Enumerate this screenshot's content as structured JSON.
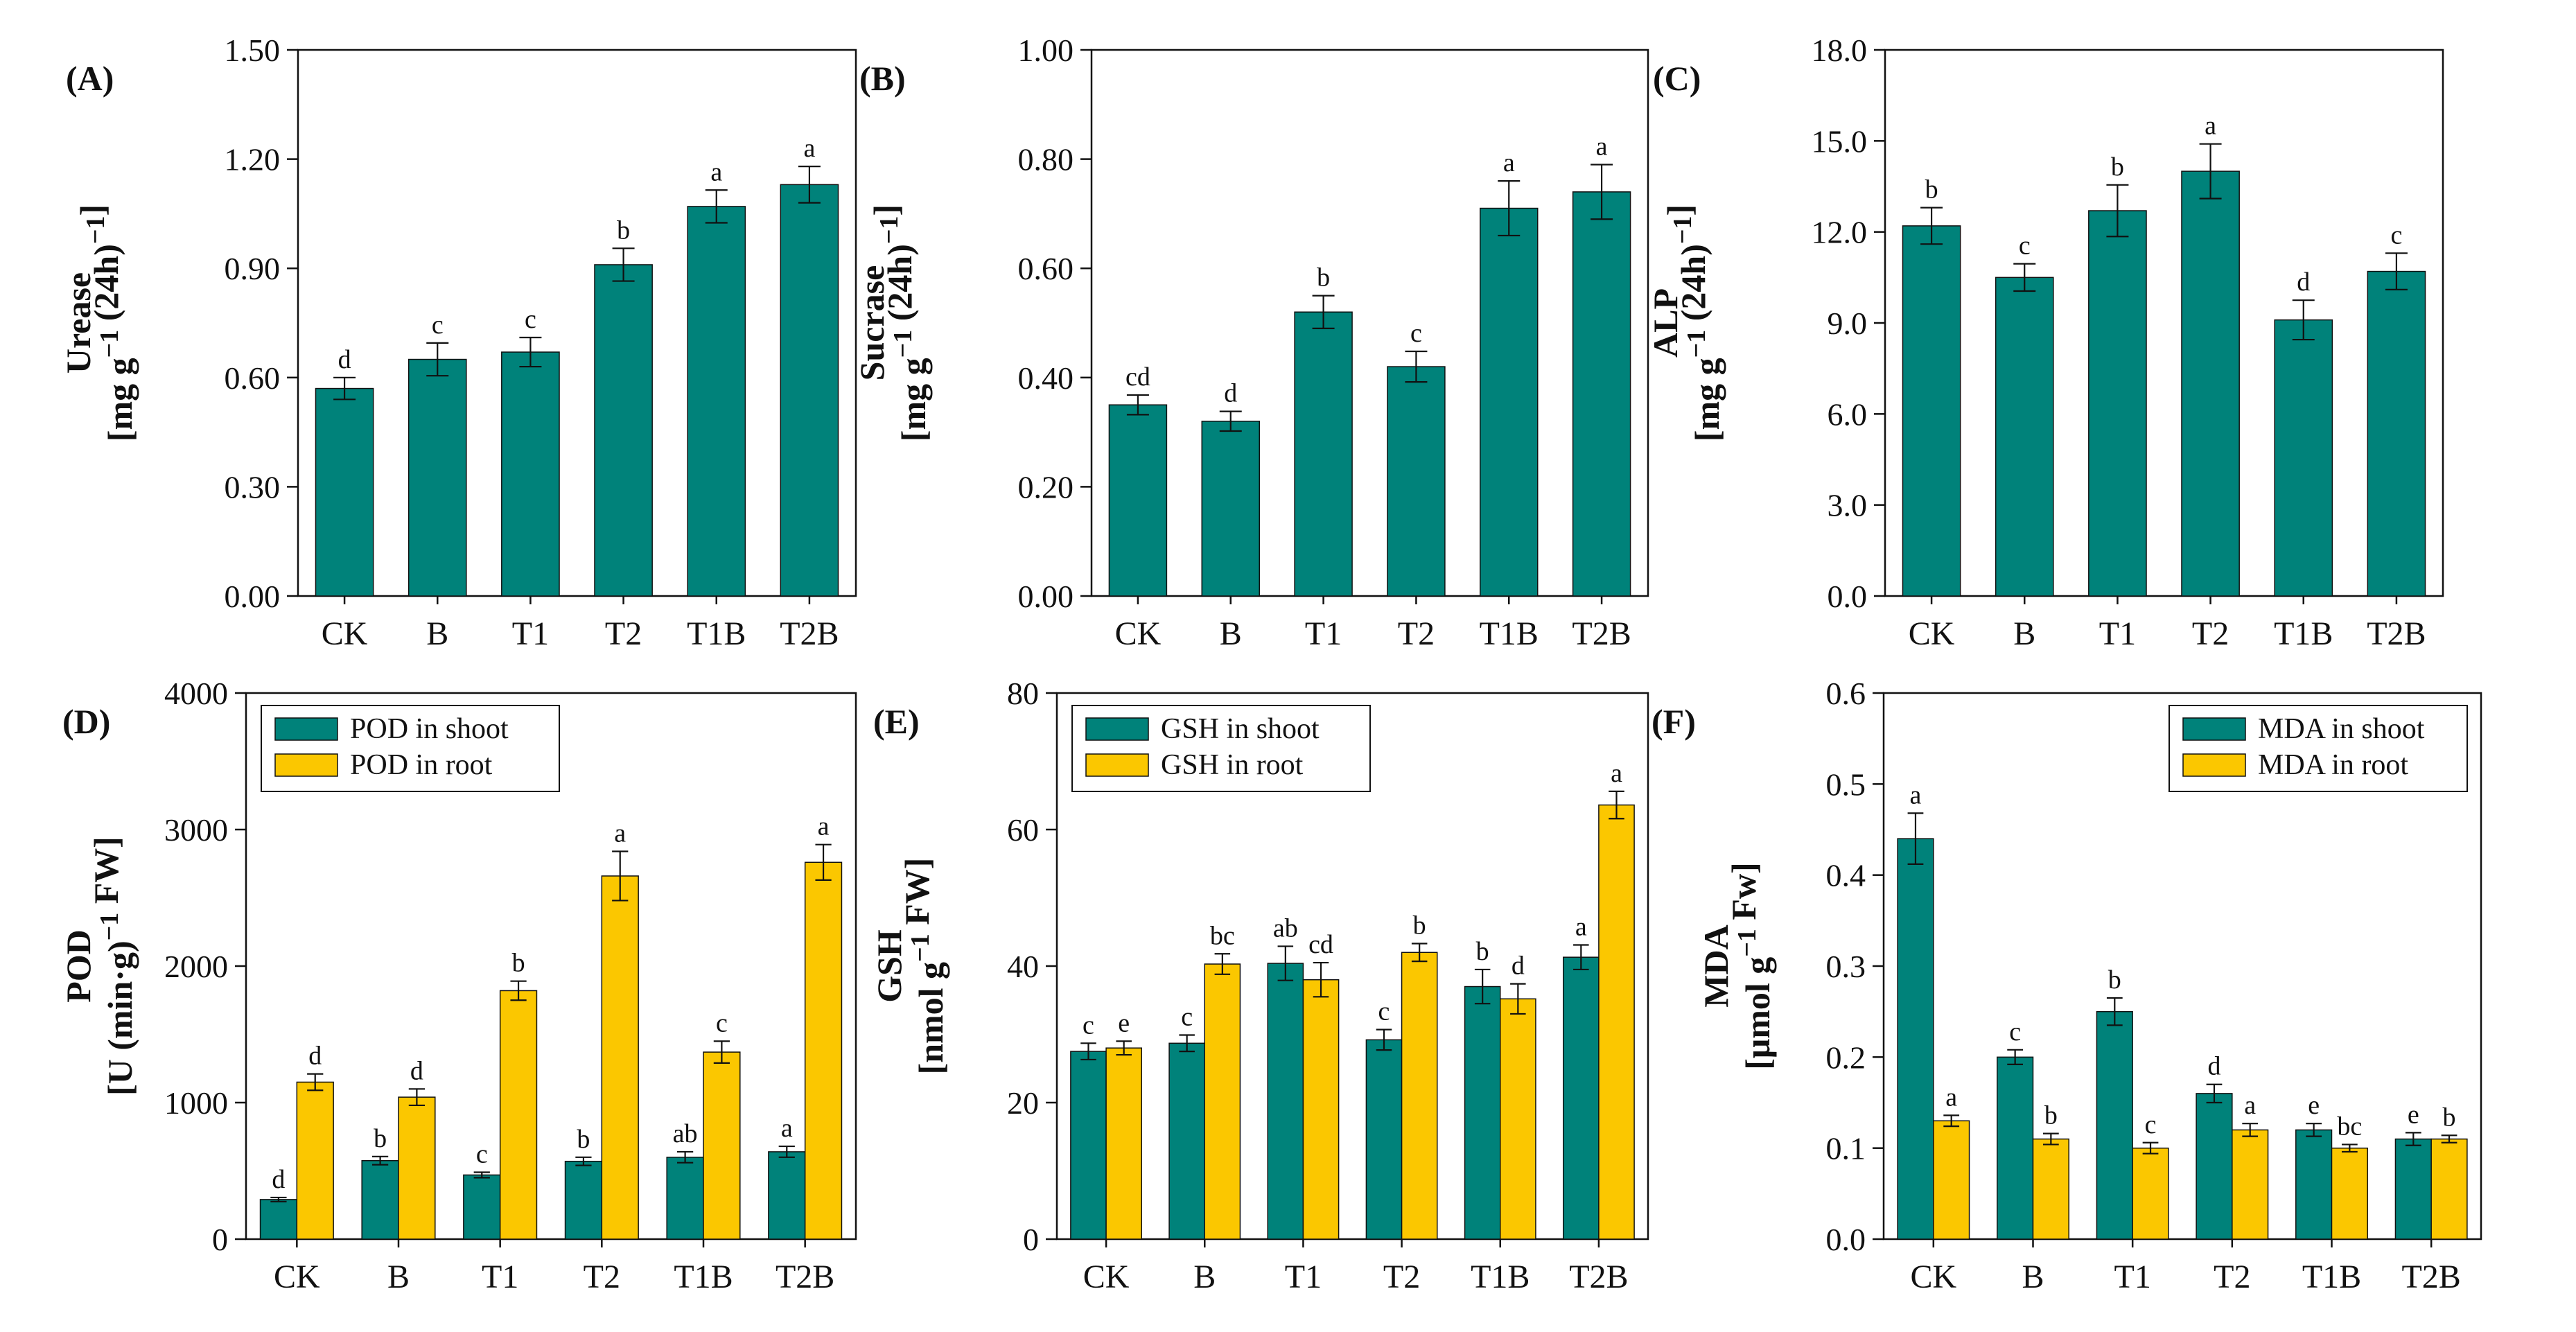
{
  "colors": {
    "shoot": "#00827a",
    "root": "#fbc700",
    "text": "#111111",
    "axis": "#111111"
  },
  "chart_data": [
    {
      "id": "A",
      "panel_label": "(A)",
      "type": "bar",
      "categories": [
        "CK",
        "B",
        "T1",
        "T2",
        "T1B",
        "T2B"
      ],
      "ylim": [
        0,
        1.5
      ],
      "yticks": [
        "0.00",
        "0.30",
        "0.60",
        "0.90",
        "1.20",
        "1.50"
      ],
      "ylabel_line1": "Urease",
      "ylabel_line2": "[mg g",
      "ylabel_sup1": "−1",
      "ylabel_mid": " (24h)",
      "ylabel_sup2": "−1",
      "ylabel_end": "]",
      "series": [
        {
          "name": "Urease",
          "color_key": "shoot",
          "values": [
            0.57,
            0.65,
            0.67,
            0.91,
            1.07,
            1.13
          ],
          "errors": [
            0.03,
            0.045,
            0.04,
            0.045,
            0.045,
            0.05
          ],
          "letters": [
            "d",
            "c",
            "c",
            "b",
            "a",
            "a"
          ]
        }
      ]
    },
    {
      "id": "B",
      "panel_label": "(B)",
      "type": "bar",
      "categories": [
        "CK",
        "B",
        "T1",
        "T2",
        "T1B",
        "T2B"
      ],
      "ylim": [
        0,
        1.0
      ],
      "yticks": [
        "0.00",
        "0.20",
        "0.40",
        "0.60",
        "0.80",
        "1.00"
      ],
      "ylabel_line1": "Sucrase",
      "ylabel_line2": "[mg g",
      "ylabel_sup1": "−1",
      "ylabel_mid": " (24h)",
      "ylabel_sup2": "−1",
      "ylabel_end": "]",
      "series": [
        {
          "name": "Sucrase",
          "color_key": "shoot",
          "values": [
            0.35,
            0.32,
            0.52,
            0.42,
            0.71,
            0.74
          ],
          "errors": [
            0.018,
            0.018,
            0.03,
            0.028,
            0.05,
            0.05
          ],
          "letters": [
            "cd",
            "d",
            "b",
            "c",
            "a",
            "a"
          ]
        }
      ]
    },
    {
      "id": "C",
      "panel_label": "(C)",
      "type": "bar",
      "categories": [
        "CK",
        "B",
        "T1",
        "T2",
        "T1B",
        "T2B"
      ],
      "ylim": [
        0,
        18
      ],
      "yticks": [
        "0.0",
        "3.0",
        "6.0",
        "9.0",
        "12.0",
        "15.0",
        "18.0"
      ],
      "ylabel_line1": "ALP",
      "ylabel_line2": "[mg g",
      "ylabel_sup1": "−1",
      "ylabel_mid": " (24h)",
      "ylabel_sup2": "−1",
      "ylabel_end": "]",
      "series": [
        {
          "name": "ALP",
          "color_key": "shoot",
          "values": [
            12.2,
            10.5,
            12.7,
            14.0,
            9.1,
            10.7
          ],
          "errors": [
            0.6,
            0.45,
            0.85,
            0.9,
            0.65,
            0.6
          ],
          "letters": [
            "b",
            "c",
            "b",
            "a",
            "d",
            "c"
          ]
        }
      ]
    },
    {
      "id": "D",
      "panel_label": "(D)",
      "type": "bar",
      "categories": [
        "CK",
        "B",
        "T1",
        "T2",
        "T1B",
        "T2B"
      ],
      "ylim": [
        0,
        4000
      ],
      "yticks": [
        "0",
        "1000",
        "2000",
        "3000",
        "4000"
      ],
      "ylabel_line1": "POD",
      "ylabel_line2": "[U (min·g)",
      "ylabel_sup1": "−1",
      "ylabel_mid": " FW]",
      "ylabel_sup2": "",
      "ylabel_end": "",
      "legend": [
        "POD in shoot",
        "POD in root"
      ],
      "legend_position": "top-left",
      "series": [
        {
          "name": "POD in shoot",
          "color_key": "shoot",
          "values": [
            290,
            575,
            470,
            570,
            600,
            640
          ],
          "errors": [
            15,
            30,
            20,
            30,
            40,
            40
          ],
          "letters": [
            "d",
            "b",
            "c",
            "b",
            "ab",
            "a"
          ]
        },
        {
          "name": "POD in root",
          "color_key": "root",
          "values": [
            1150,
            1040,
            1820,
            2660,
            1370,
            2760
          ],
          "errors": [
            60,
            60,
            70,
            180,
            80,
            130
          ],
          "letters": [
            "d",
            "d",
            "b",
            "a",
            "c",
            "a"
          ]
        }
      ]
    },
    {
      "id": "E",
      "panel_label": "(E)",
      "type": "bar",
      "categories": [
        "CK",
        "B",
        "T1",
        "T2",
        "T1B",
        "T2B"
      ],
      "ylim": [
        0,
        80
      ],
      "yticks": [
        "0",
        "20",
        "40",
        "60",
        "80"
      ],
      "ylabel_line1": "GSH",
      "ylabel_line2": "[nmol g",
      "ylabel_sup1": "−1",
      "ylabel_mid": " FW]",
      "ylabel_sup2": "",
      "ylabel_end": "",
      "legend": [
        "GSH in shoot",
        "GSH in root"
      ],
      "legend_position": "top-left",
      "series": [
        {
          "name": "GSH in shoot",
          "color_key": "shoot",
          "values": [
            27.5,
            28.7,
            40.4,
            29.2,
            37.0,
            41.3
          ],
          "errors": [
            1.2,
            1.2,
            2.5,
            1.5,
            2.5,
            1.8
          ],
          "letters": [
            "c",
            "c",
            "ab",
            "c",
            "b",
            "a"
          ]
        },
        {
          "name": "GSH in root",
          "color_key": "root",
          "values": [
            28.0,
            40.3,
            38.0,
            42.0,
            35.2,
            63.6
          ],
          "errors": [
            1.0,
            1.5,
            2.5,
            1.3,
            2.2,
            2.0
          ],
          "letters": [
            "e",
            "bc",
            "cd",
            "b",
            "d",
            "a"
          ]
        }
      ]
    },
    {
      "id": "F",
      "panel_label": "(F)",
      "type": "bar",
      "categories": [
        "CK",
        "B",
        "T1",
        "T2",
        "T1B",
        "T2B"
      ],
      "ylim": [
        0,
        0.6
      ],
      "yticks": [
        "0.0",
        "0.1",
        "0.2",
        "0.3",
        "0.4",
        "0.5",
        "0.6"
      ],
      "ylabel_line1": "MDA",
      "ylabel_line2": "[μmol g",
      "ylabel_sup1": "−1",
      "ylabel_mid": " Fw]",
      "ylabel_sup2": "",
      "ylabel_end": "",
      "legend": [
        "MDA in shoot",
        "MDA in root"
      ],
      "legend_position": "top-right",
      "series": [
        {
          "name": "MDA in shoot",
          "color_key": "shoot",
          "values": [
            0.44,
            0.2,
            0.25,
            0.16,
            0.12,
            0.11
          ],
          "errors": [
            0.028,
            0.008,
            0.015,
            0.01,
            0.007,
            0.007
          ],
          "letters": [
            "a",
            "c",
            "b",
            "d",
            "e",
            "e"
          ]
        },
        {
          "name": "MDA in root",
          "color_key": "root",
          "values": [
            0.13,
            0.11,
            0.1,
            0.12,
            0.1,
            0.11
          ],
          "errors": [
            0.006,
            0.006,
            0.006,
            0.007,
            0.004,
            0.004
          ],
          "letters": [
            "a",
            "b",
            "c",
            "a",
            "bc",
            "b"
          ]
        }
      ]
    }
  ]
}
